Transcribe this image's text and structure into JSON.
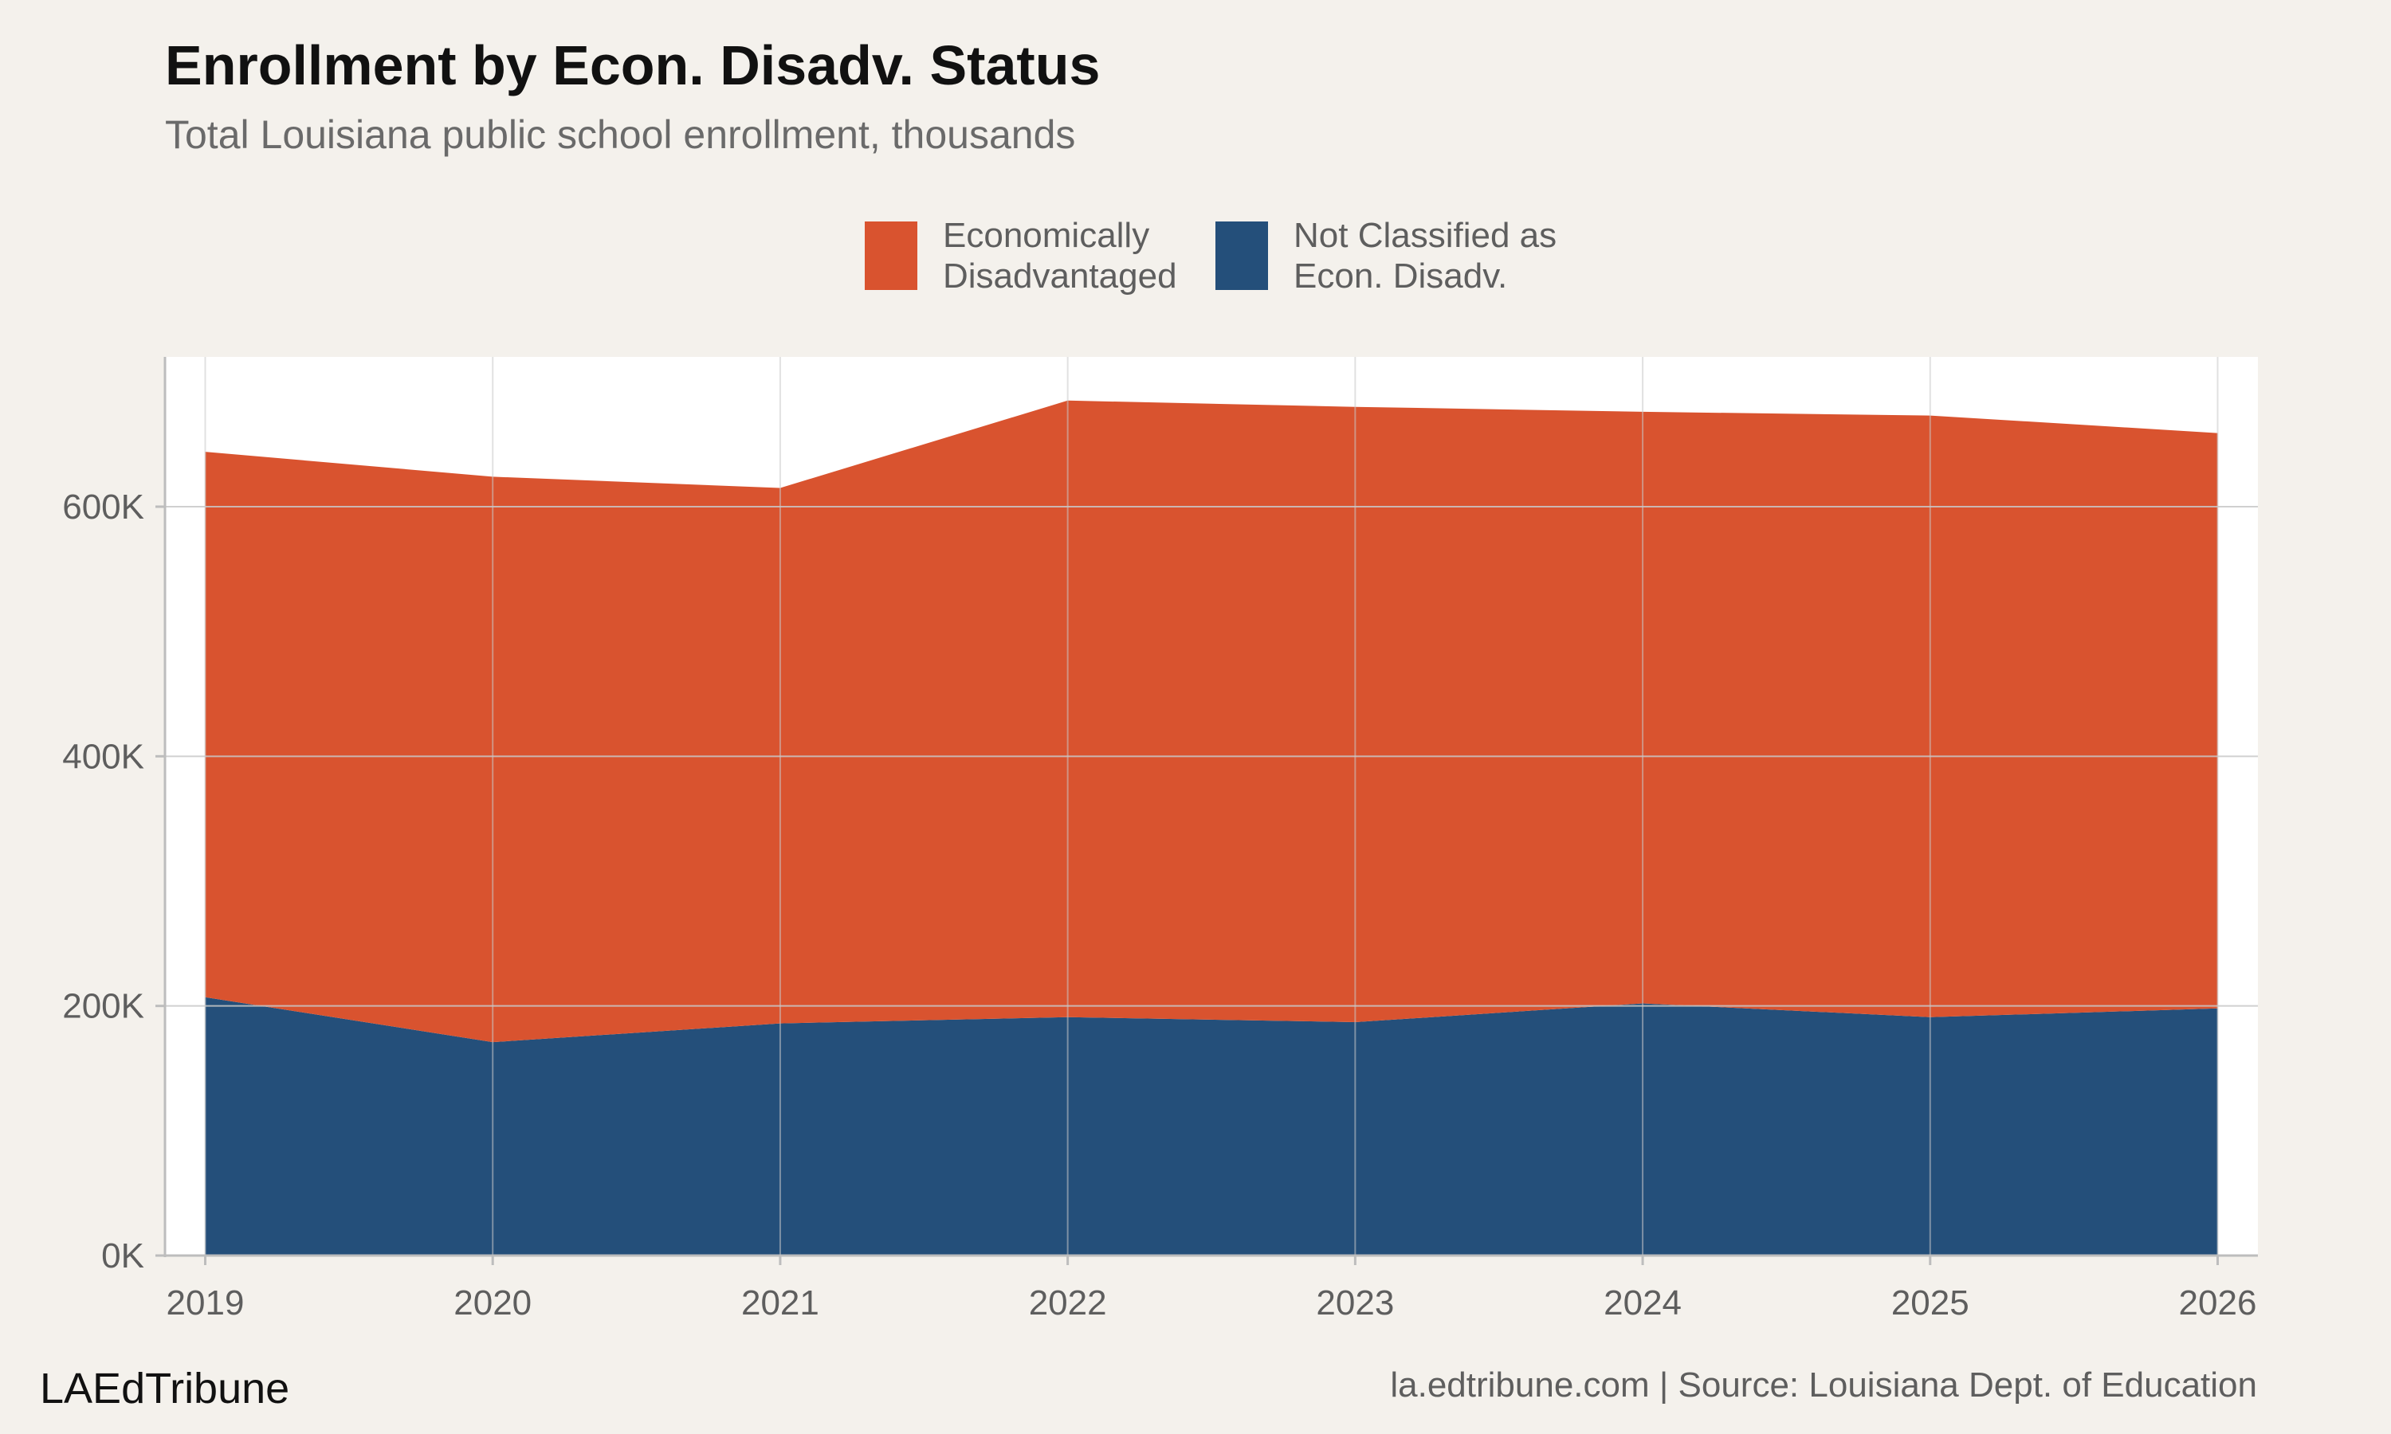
{
  "title": "Enrollment by Econ. Disadv. Status",
  "subtitle": "Total Louisiana public school enrollment, thousands",
  "brand": "LAEdTribune",
  "footer": "la.edtribune.com | Source: Louisiana Dept. of Education",
  "colors": {
    "background": "#F4F1EC",
    "panel": "#FFFFFF",
    "gridline": "#C8C8C8",
    "econ_disadv": "#D9532F",
    "not_econ_disadv": "#244F7A"
  },
  "legend": {
    "items": [
      {
        "label": "Economically Disadvantaged",
        "color": "#D9532F"
      },
      {
        "label": "Not Classified as Econ. Disadv.",
        "color": "#244F7A"
      }
    ],
    "placement": "top-center"
  },
  "chart_data": {
    "type": "area",
    "stacked": true,
    "title": "Enrollment by Econ. Disadv. Status",
    "subtitle": "Total Louisiana public school enrollment, thousands",
    "x": [
      2019,
      2020,
      2021,
      2022,
      2023,
      2024,
      2025,
      2026
    ],
    "x_tick_labels": [
      "2019",
      "2020",
      "2021",
      "2022",
      "2023",
      "2024",
      "2025",
      "2026"
    ],
    "y_tick_values": [
      0,
      200000,
      400000,
      600000
    ],
    "y_tick_labels": [
      "0K",
      "200K",
      "400K",
      "600K"
    ],
    "ylim": [
      0,
      720000
    ],
    "xlim": [
      2018.86,
      2026.14
    ],
    "grid": true,
    "series": [
      {
        "name": "Not Classified as Econ. Disadv.",
        "color": "#244F7A",
        "values": [
          207000,
          171000,
          186000,
          191000,
          187000,
          202000,
          191000,
          198000
        ]
      },
      {
        "name": "Economically Disadvantaged",
        "color": "#D9532F",
        "values": [
          437000,
          453000,
          429000,
          494000,
          493000,
          474000,
          482000,
          461000
        ]
      }
    ]
  }
}
